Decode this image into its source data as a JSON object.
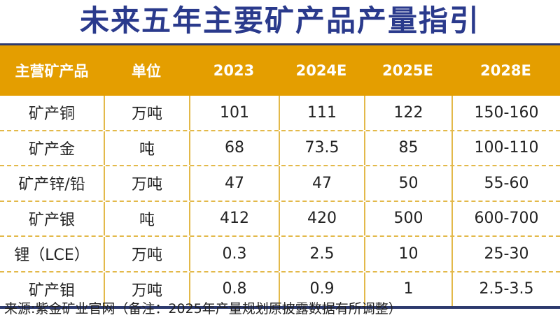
{
  "title": "未来五年主要矿产品产量指引",
  "table": {
    "headers": [
      "主营矿产品",
      "单位",
      "2023",
      "2024E",
      "2025E",
      "2028E"
    ],
    "rows": [
      [
        "矿产铜",
        "万吨",
        "101",
        "111",
        "122",
        "150-160"
      ],
      [
        "矿产金",
        "吨",
        "68",
        "73.5",
        "85",
        "100-110"
      ],
      [
        "矿产锌/铅",
        "万吨",
        "47",
        "47",
        "50",
        "55-60"
      ],
      [
        "矿产银",
        "吨",
        "412",
        "420",
        "500",
        "600-700"
      ],
      [
        "锂（LCE）",
        "万吨",
        "0.3",
        "2.5",
        "10",
        "25-30"
      ],
      [
        "矿产钼",
        "万吨",
        "0.8",
        "0.9",
        "1",
        "2.5-3.5"
      ]
    ]
  },
  "footer": "来源:紫金矿业官网（备注：2025年产量规划原披露数据有所调整）",
  "colors": {
    "header_bg": "#e49e00",
    "title": "#2a3a8c",
    "border": "#2d3a6e",
    "grid": "#e3b94a"
  }
}
